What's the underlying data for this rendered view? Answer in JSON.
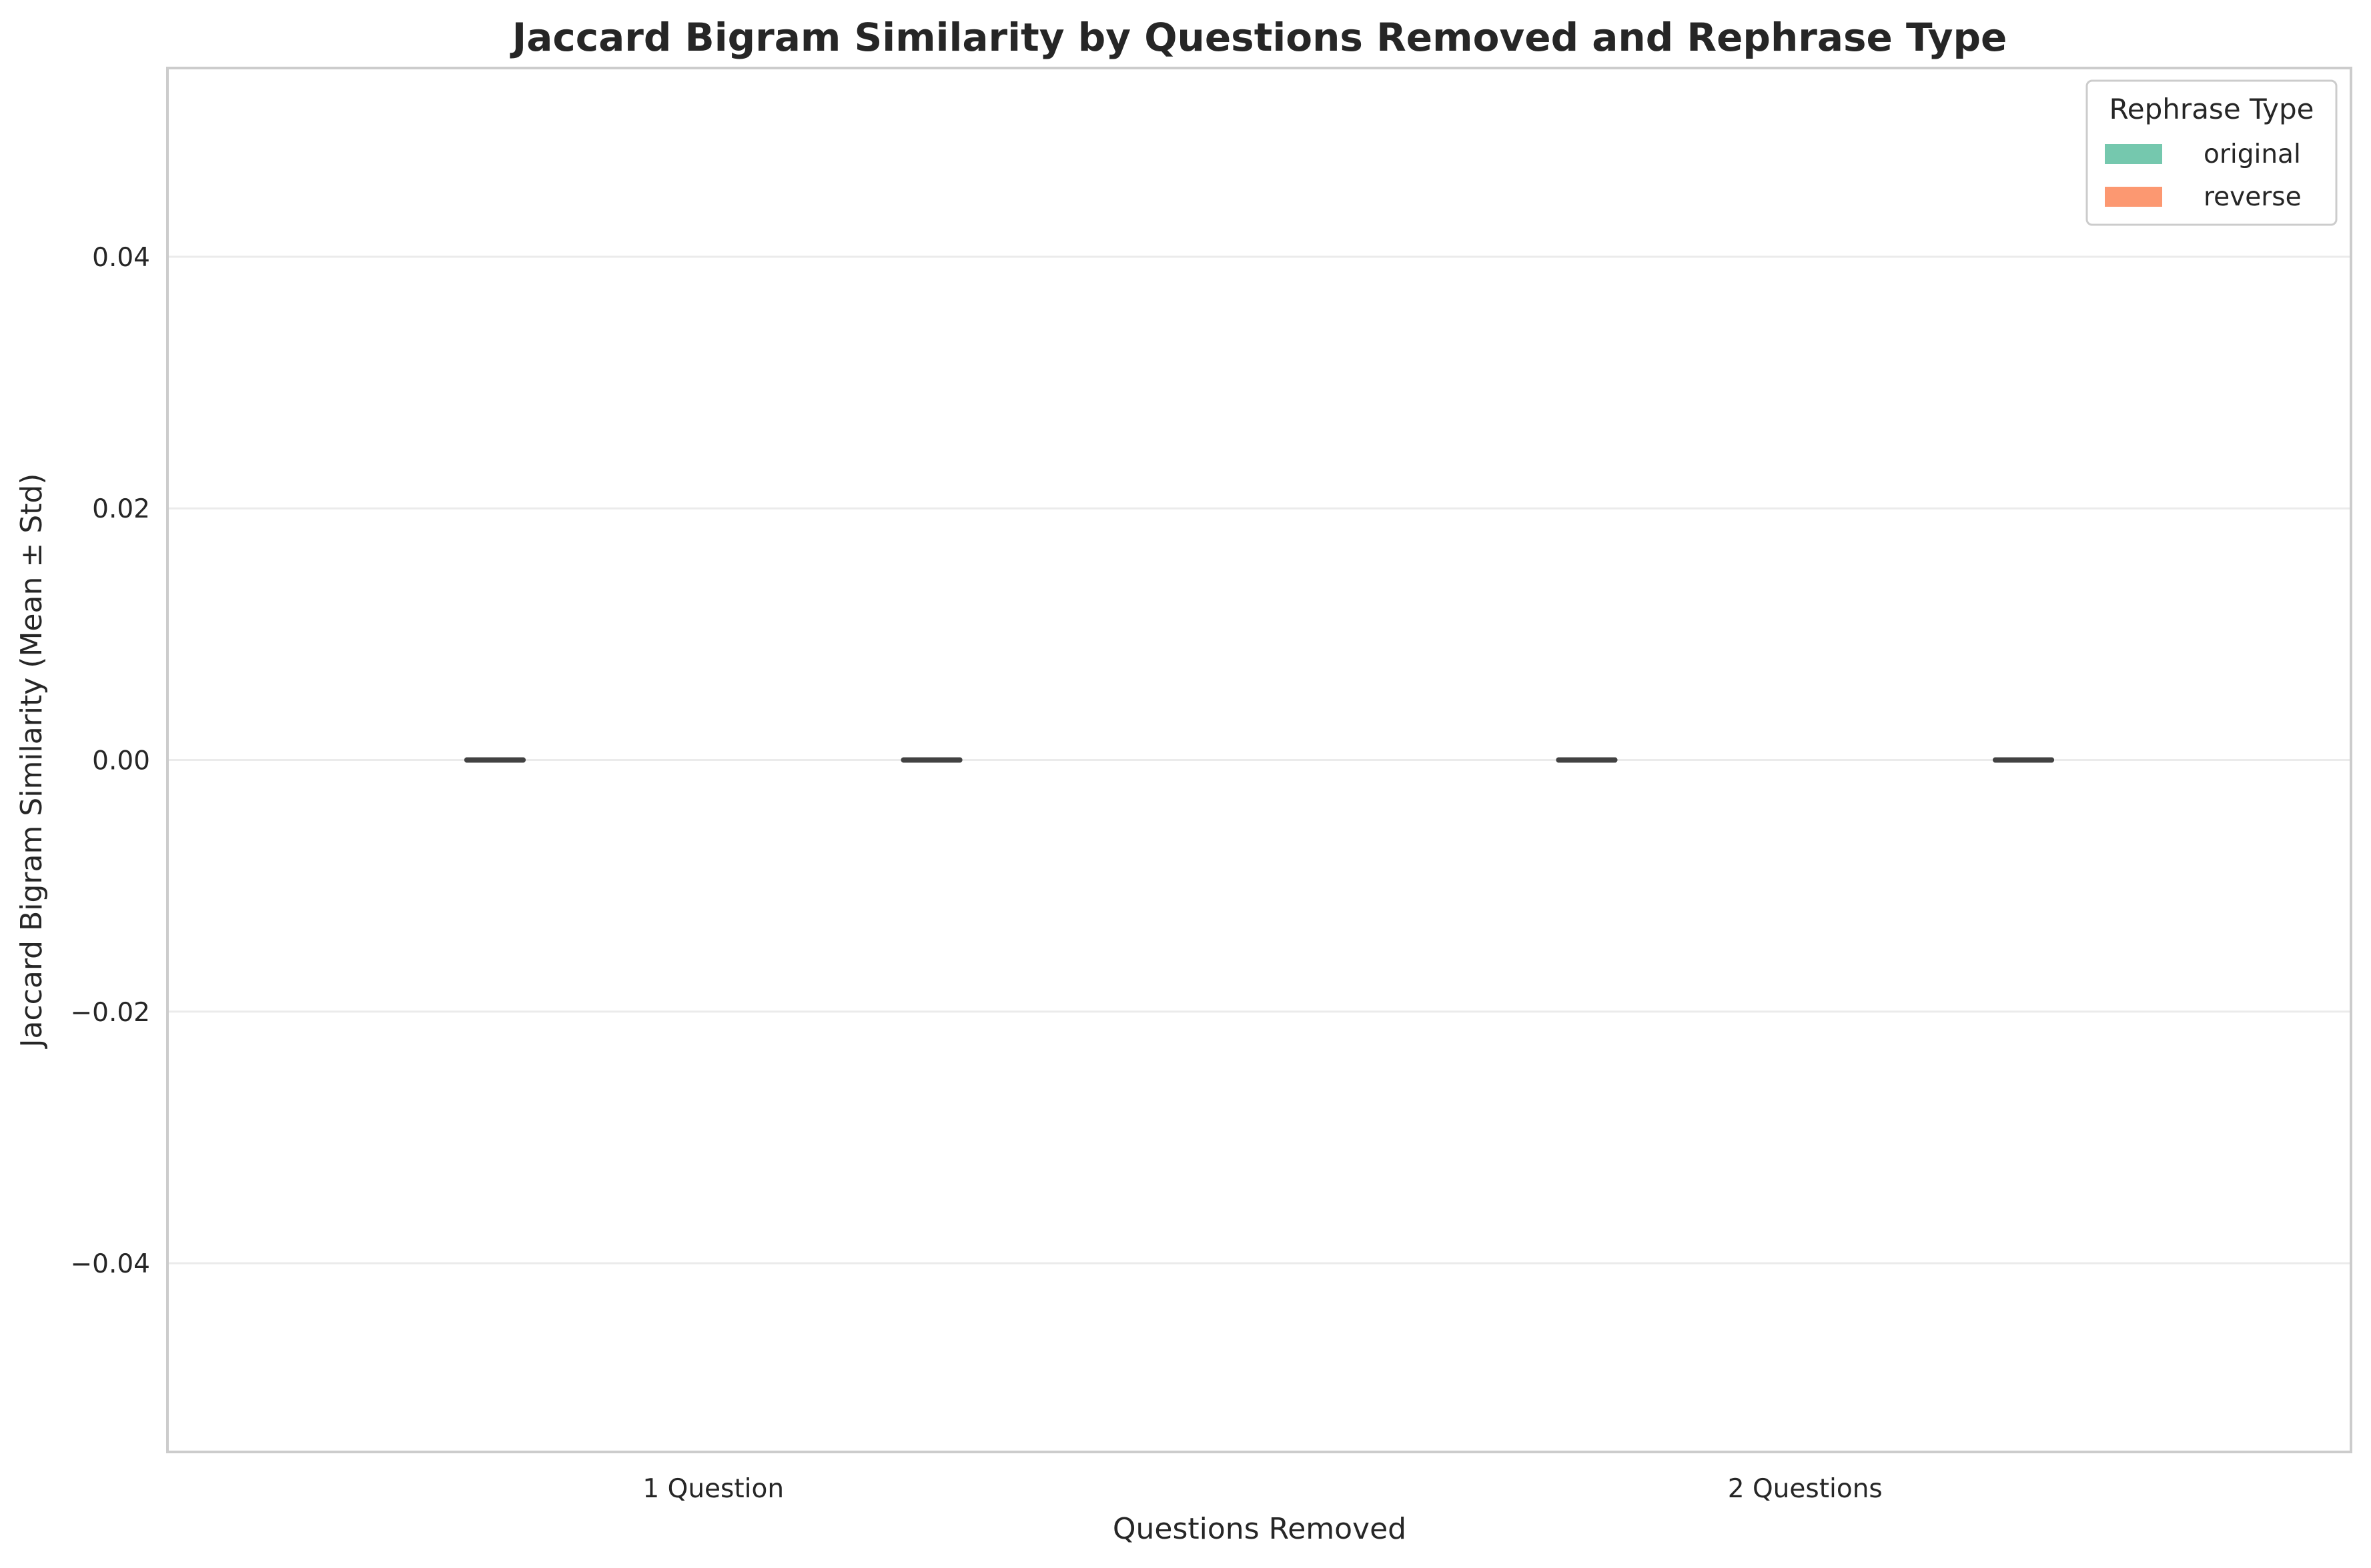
{
  "chart_data": {
    "type": "bar",
    "title": "Jaccard Bigram Similarity by Questions Removed and Rephrase Type",
    "xlabel": "Questions Removed",
    "ylabel": "Jaccard Bigram Similarity (Mean ± Std)",
    "categories": [
      "1 Question",
      "2 Questions"
    ],
    "series": [
      {
        "name": "original",
        "values": [
          0.0,
          0.0
        ],
        "std": [
          0.0,
          0.0
        ],
        "color": "#66c2a5"
      },
      {
        "name": "reverse",
        "values": [
          0.0,
          0.0
        ],
        "std": [
          0.0,
          0.0
        ],
        "color": "#fc8d62"
      }
    ],
    "ylim": [
      -0.055,
      0.055
    ],
    "yticks": [
      -0.04,
      -0.02,
      0.0,
      0.02,
      0.04
    ],
    "ytick_labels": [
      "−0.04",
      "−0.02",
      "0.00",
      "0.02",
      "0.04"
    ],
    "grid": true,
    "legend": {
      "title": "Rephrase Type",
      "position": "top-right"
    }
  }
}
